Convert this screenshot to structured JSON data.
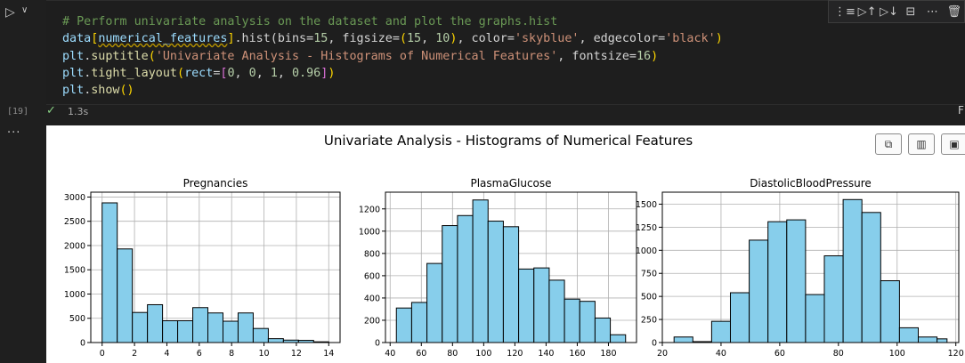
{
  "cell": {
    "exec_count": "[19]",
    "exec_time": "1.3s",
    "right_partial": "F",
    "code_lines": {
      "l1": "# Perform univariate analysis on the dataset and plot the graphs.hist",
      "l2a": "data",
      "l2b": "numerical_features",
      "l2c": ".hist(bins=",
      "l2d": "15",
      "l2e": ", figsize=",
      "l2f": "15",
      "l2g": "10",
      "l2h": "'skyblue'",
      "l2i": "'black'",
      "l3a": "plt",
      "l3b": "suptitle",
      "l3c": "'Univariate Analysis - Histograms of Numerical Features'",
      "l3d": "16",
      "l4a": "plt",
      "l4b": "tight_layout",
      "l4c": "rect",
      "l5a": "plt",
      "l5b": "show"
    }
  },
  "toolbar_icons": [
    "run-by-line-icon",
    "execute-above-icon",
    "execute-below-icon",
    "split-cell-icon",
    "more-icon",
    "delete-icon"
  ],
  "figure": {
    "suptitle": "Univariate Analysis - Histograms of Numerical Features",
    "fill_color": "#87ceeb",
    "edge_color": "#000000"
  },
  "chart_data": [
    {
      "type": "bar",
      "title": "Pregnancies",
      "xlim": [
        -0.7,
        14.7
      ],
      "ylim": [
        0,
        3100
      ],
      "bin_edges": [
        0,
        0.933,
        1.867,
        2.8,
        3.733,
        4.667,
        5.6,
        6.533,
        7.467,
        8.4,
        9.333,
        10.267,
        11.2,
        12.133,
        13.067,
        14
      ],
      "values": [
        2880,
        1930,
        620,
        780,
        450,
        450,
        720,
        610,
        440,
        610,
        290,
        80,
        50,
        45,
        15
      ],
      "xticks": [
        0,
        2,
        4,
        6,
        8,
        10,
        12,
        14
      ],
      "yticks": [
        0,
        500,
        1000,
        1500,
        2000,
        2500,
        3000
      ],
      "ytick_labels": [
        "0",
        "500",
        "1000",
        "1500",
        "2000",
        "2500",
        "3000"
      ],
      "grid": true
    },
    {
      "type": "bar",
      "title": "PlasmaGlucose",
      "xlim": [
        37,
        198
      ],
      "ylim": [
        0,
        1350
      ],
      "bin_edges": [
        44,
        53.8,
        63.6,
        73.4,
        83.2,
        93,
        102.8,
        112.6,
        122.4,
        132.2,
        142,
        151.8,
        161.6,
        171.4,
        181.2,
        191
      ],
      "values": [
        310,
        360,
        710,
        1050,
        1140,
        1280,
        1090,
        1040,
        660,
        670,
        560,
        390,
        370,
        220,
        70
      ],
      "xticks": [
        40,
        60,
        80,
        100,
        120,
        140,
        160,
        180
      ],
      "yticks": [
        0,
        200,
        400,
        600,
        800,
        1000,
        1200
      ],
      "ytick_labels": [
        "0",
        "200",
        "400",
        "600",
        "800",
        "1000",
        "1200"
      ],
      "grid": true
    },
    {
      "type": "bar",
      "title": "DiastolicBloodPressure",
      "xlim": [
        20,
        121
      ],
      "ylim": [
        0,
        1630
      ],
      "bin_edges": [
        24,
        30.4,
        36.8,
        43.2,
        49.6,
        56,
        62.4,
        68.8,
        75.2,
        81.6,
        88,
        94.4,
        100.8,
        107.2,
        113.6,
        117
      ],
      "values": [
        60,
        10,
        230,
        540,
        1110,
        1310,
        1330,
        520,
        940,
        1550,
        1410,
        670,
        160,
        60,
        40
      ],
      "xticks": [
        20,
        40,
        60,
        80,
        100,
        120
      ],
      "yticks": [
        0,
        250,
        500,
        750,
        1000,
        1250,
        1500
      ],
      "ytick_labels": [
        "0",
        "250",
        "500",
        "750",
        "1000",
        "1250",
        "1500"
      ],
      "grid": true
    }
  ]
}
